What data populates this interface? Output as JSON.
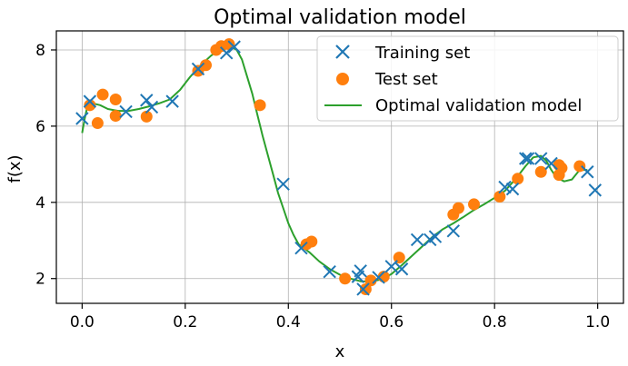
{
  "chart_data": {
    "type": "scatter",
    "title": "Optimal validation model",
    "xlabel": "x",
    "ylabel": "f(x)",
    "xlim": [
      -0.05,
      1.05
    ],
    "ylim": [
      1.35,
      8.5
    ],
    "x_ticks": [
      0.0,
      0.2,
      0.4,
      0.6,
      0.8,
      1.0
    ],
    "x_tick_labels": [
      "0.0",
      "0.2",
      "0.4",
      "0.6",
      "0.8",
      "1.0"
    ],
    "y_ticks": [
      2,
      4,
      6,
      8
    ],
    "y_tick_labels": [
      "2",
      "4",
      "6",
      "8"
    ],
    "grid": true,
    "legend_position": "top-right",
    "colors": {
      "training": "#1f77b4",
      "test": "#ff7f0e",
      "model": "#2ca02c"
    },
    "series": [
      {
        "name": "Training set",
        "marker": "x",
        "points": [
          [
            0.0,
            6.2
          ],
          [
            0.015,
            6.65
          ],
          [
            0.085,
            6.38
          ],
          [
            0.125,
            6.68
          ],
          [
            0.135,
            6.5
          ],
          [
            0.175,
            6.65
          ],
          [
            0.225,
            7.5
          ],
          [
            0.28,
            7.92
          ],
          [
            0.295,
            8.08
          ],
          [
            0.39,
            4.48
          ],
          [
            0.425,
            2.8
          ],
          [
            0.48,
            2.18
          ],
          [
            0.535,
            2.05
          ],
          [
            0.54,
            2.2
          ],
          [
            0.545,
            1.72
          ],
          [
            0.575,
            2.03
          ],
          [
            0.6,
            2.32
          ],
          [
            0.62,
            2.25
          ],
          [
            0.65,
            3.02
          ],
          [
            0.675,
            3.02
          ],
          [
            0.685,
            3.1
          ],
          [
            0.72,
            3.25
          ],
          [
            0.82,
            4.4
          ],
          [
            0.835,
            4.35
          ],
          [
            0.86,
            5.15
          ],
          [
            0.865,
            5.15
          ],
          [
            0.89,
            5.15
          ],
          [
            0.91,
            5.02
          ],
          [
            0.98,
            4.8
          ],
          [
            0.995,
            4.32
          ]
        ]
      },
      {
        "name": "Test set",
        "marker": "o",
        "points": [
          [
            0.015,
            6.55
          ],
          [
            0.03,
            6.08
          ],
          [
            0.04,
            6.83
          ],
          [
            0.065,
            6.7
          ],
          [
            0.065,
            6.27
          ],
          [
            0.125,
            6.25
          ],
          [
            0.225,
            7.45
          ],
          [
            0.24,
            7.6
          ],
          [
            0.26,
            8.0
          ],
          [
            0.27,
            8.1
          ],
          [
            0.285,
            8.15
          ],
          [
            0.345,
            6.55
          ],
          [
            0.435,
            2.9
          ],
          [
            0.445,
            2.97
          ],
          [
            0.51,
            2.0
          ],
          [
            0.55,
            1.72
          ],
          [
            0.56,
            1.95
          ],
          [
            0.585,
            2.05
          ],
          [
            0.615,
            2.55
          ],
          [
            0.72,
            3.68
          ],
          [
            0.73,
            3.85
          ],
          [
            0.76,
            3.95
          ],
          [
            0.81,
            4.15
          ],
          [
            0.845,
            4.62
          ],
          [
            0.89,
            4.8
          ],
          [
            0.925,
            4.72
          ],
          [
            0.925,
            4.98
          ],
          [
            0.93,
            4.9
          ],
          [
            0.965,
            4.95
          ]
        ]
      },
      {
        "name": "Optimal validation model",
        "marker": "line",
        "points": [
          [
            0.0,
            5.82
          ],
          [
            0.005,
            6.2
          ],
          [
            0.01,
            6.5
          ],
          [
            0.02,
            6.6
          ],
          [
            0.035,
            6.55
          ],
          [
            0.05,
            6.45
          ],
          [
            0.07,
            6.4
          ],
          [
            0.09,
            6.4
          ],
          [
            0.11,
            6.45
          ],
          [
            0.13,
            6.52
          ],
          [
            0.15,
            6.6
          ],
          [
            0.17,
            6.7
          ],
          [
            0.19,
            6.95
          ],
          [
            0.21,
            7.3
          ],
          [
            0.23,
            7.6
          ],
          [
            0.25,
            7.85
          ],
          [
            0.27,
            8.05
          ],
          [
            0.285,
            8.12
          ],
          [
            0.3,
            8.0
          ],
          [
            0.31,
            7.75
          ],
          [
            0.32,
            7.3
          ],
          [
            0.33,
            6.85
          ],
          [
            0.34,
            6.3
          ],
          [
            0.35,
            5.75
          ],
          [
            0.36,
            5.25
          ],
          [
            0.37,
            4.75
          ],
          [
            0.38,
            4.25
          ],
          [
            0.39,
            3.85
          ],
          [
            0.4,
            3.45
          ],
          [
            0.41,
            3.15
          ],
          [
            0.42,
            2.9
          ],
          [
            0.44,
            2.7
          ],
          [
            0.46,
            2.45
          ],
          [
            0.48,
            2.25
          ],
          [
            0.5,
            2.1
          ],
          [
            0.52,
            2.0
          ],
          [
            0.54,
            1.93
          ],
          [
            0.56,
            1.92
          ],
          [
            0.58,
            1.98
          ],
          [
            0.6,
            2.12
          ],
          [
            0.62,
            2.35
          ],
          [
            0.64,
            2.6
          ],
          [
            0.66,
            2.85
          ],
          [
            0.68,
            3.1
          ],
          [
            0.7,
            3.3
          ],
          [
            0.72,
            3.45
          ],
          [
            0.74,
            3.62
          ],
          [
            0.76,
            3.8
          ],
          [
            0.78,
            3.95
          ],
          [
            0.8,
            4.12
          ],
          [
            0.82,
            4.3
          ],
          [
            0.84,
            4.6
          ],
          [
            0.86,
            4.95
          ],
          [
            0.875,
            5.18
          ],
          [
            0.89,
            5.22
          ],
          [
            0.9,
            5.1
          ],
          [
            0.91,
            4.85
          ],
          [
            0.92,
            4.65
          ],
          [
            0.935,
            4.55
          ],
          [
            0.95,
            4.6
          ],
          [
            0.965,
            4.85
          ],
          [
            0.98,
            4.85
          ]
        ]
      }
    ]
  }
}
